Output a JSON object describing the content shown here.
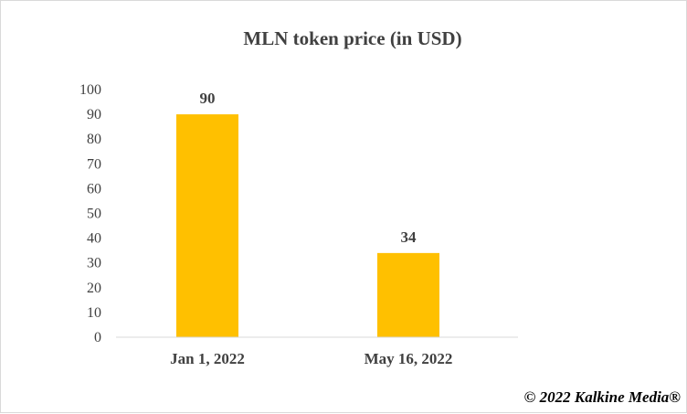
{
  "chart_data": {
    "type": "bar",
    "title": "MLN token price (in USD)",
    "categories": [
      "Jan 1, 2022",
      "May 16, 2022"
    ],
    "values": [
      90,
      34
    ],
    "data_labels": [
      "90",
      "34"
    ],
    "ylim": [
      0,
      100
    ],
    "yticks": [
      0,
      10,
      20,
      30,
      40,
      50,
      60,
      70,
      80,
      90,
      100
    ],
    "grid": false,
    "legend": "none",
    "bar_color": "#FFC000"
  },
  "footer": {
    "copyright": "© 2022 Kalkine Media®"
  }
}
